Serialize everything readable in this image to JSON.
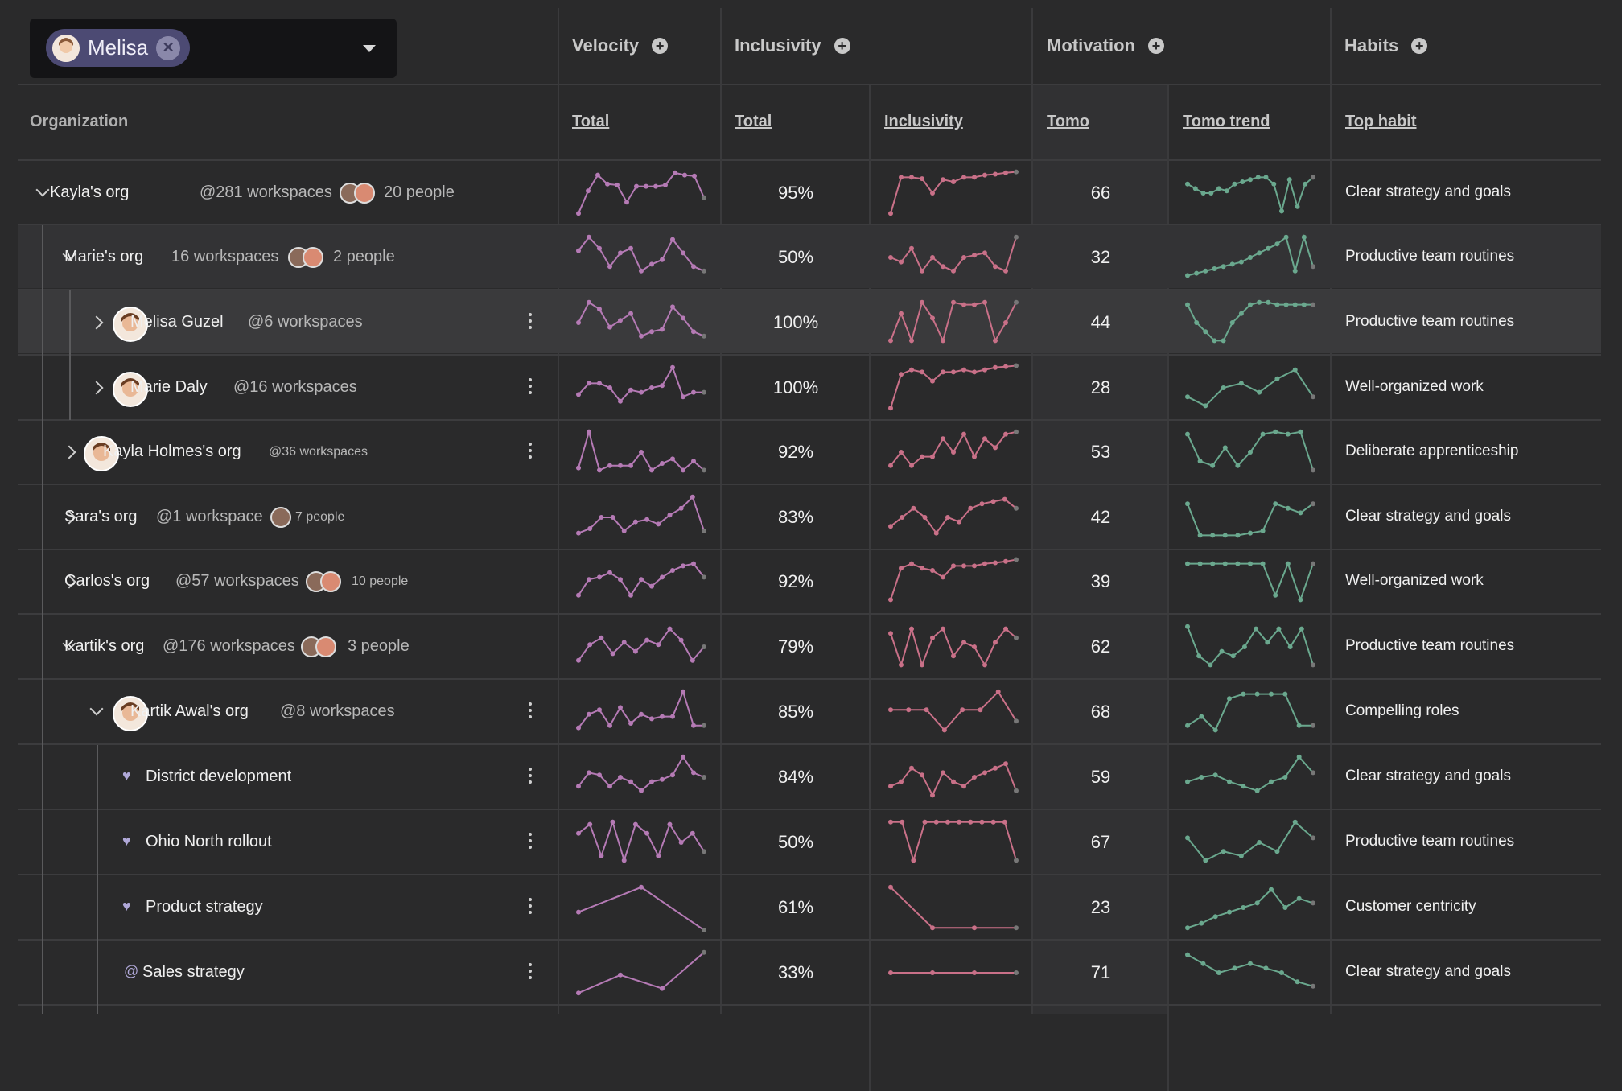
{
  "filter": {
    "selected_user": "Melisa"
  },
  "groups": {
    "velocity": "Velocity",
    "inclusivity": "Inclusivity",
    "motivation": "Motivation",
    "habits": "Habits"
  },
  "columns": {
    "organization": "Organization",
    "velocity_total": "Total",
    "inclusivity_total": "Total",
    "inclusivity_trend": "Inclusivity",
    "tomo": "Tomo",
    "tomo_trend": "Tomo trend",
    "top_habit": "Top habit"
  },
  "colors": {
    "background": "#2a2a2b",
    "velocity_line": "#b57ab5",
    "inclusivity_line": "#c97088",
    "tomo_line": "#6aa88e",
    "chip": "#4c4a73"
  },
  "rows": [
    {
      "name": "Kayla's org",
      "workspaces": "@281 workspaces",
      "people": "20 people",
      "inclusivity": "95%",
      "tomo": "66",
      "habit": "Clear strategy and goals"
    },
    {
      "name": "Marie's org",
      "workspaces": "16 workspaces",
      "people": "2 people",
      "inclusivity": "50%",
      "tomo": "32",
      "habit": "Productive team routines"
    },
    {
      "name": "Melisa Guzel",
      "workspaces": "@6 workspaces",
      "inclusivity": "100%",
      "tomo": "44",
      "habit": "Productive team routines"
    },
    {
      "name": "Marie Daly",
      "workspaces": "@16 workspaces",
      "inclusivity": "100%",
      "tomo": "28",
      "habit": "Well-organized work"
    },
    {
      "name": "Kayla Holmes's org",
      "workspaces": "@36 workspaces",
      "inclusivity": "92%",
      "tomo": "53",
      "habit": "Deliberate apprenticeship"
    },
    {
      "name": "Sara's org",
      "workspaces": "@1 workspace",
      "people": "7 people",
      "inclusivity": "83%",
      "tomo": "42",
      "habit": "Clear strategy and goals"
    },
    {
      "name": "Carlos's org",
      "workspaces": "@57 workspaces",
      "people": "10 people",
      "inclusivity": "92%",
      "tomo": "39",
      "habit": "Well-organized work"
    },
    {
      "name": "Kartik's org",
      "workspaces": "@176 workspaces",
      "people": "3 people",
      "inclusivity": "79%",
      "tomo": "62",
      "habit": "Productive team routines"
    },
    {
      "name": "Kartik Awal's org",
      "workspaces": "@8 workspaces",
      "inclusivity": "85%",
      "tomo": "68",
      "habit": "Compelling roles"
    },
    {
      "name": "District development",
      "inclusivity": "84%",
      "tomo": "59",
      "habit": "Clear strategy and goals"
    },
    {
      "name": "Ohio North rollout",
      "inclusivity": "50%",
      "tomo": "67",
      "habit": "Productive team routines"
    },
    {
      "name": "Product strategy",
      "inclusivity": "61%",
      "tomo": "23",
      "habit": "Customer centricity"
    },
    {
      "name": "Sales strategy",
      "inclusivity": "33%",
      "tomo": "71",
      "habit": "Clear strategy and goals"
    }
  ]
}
